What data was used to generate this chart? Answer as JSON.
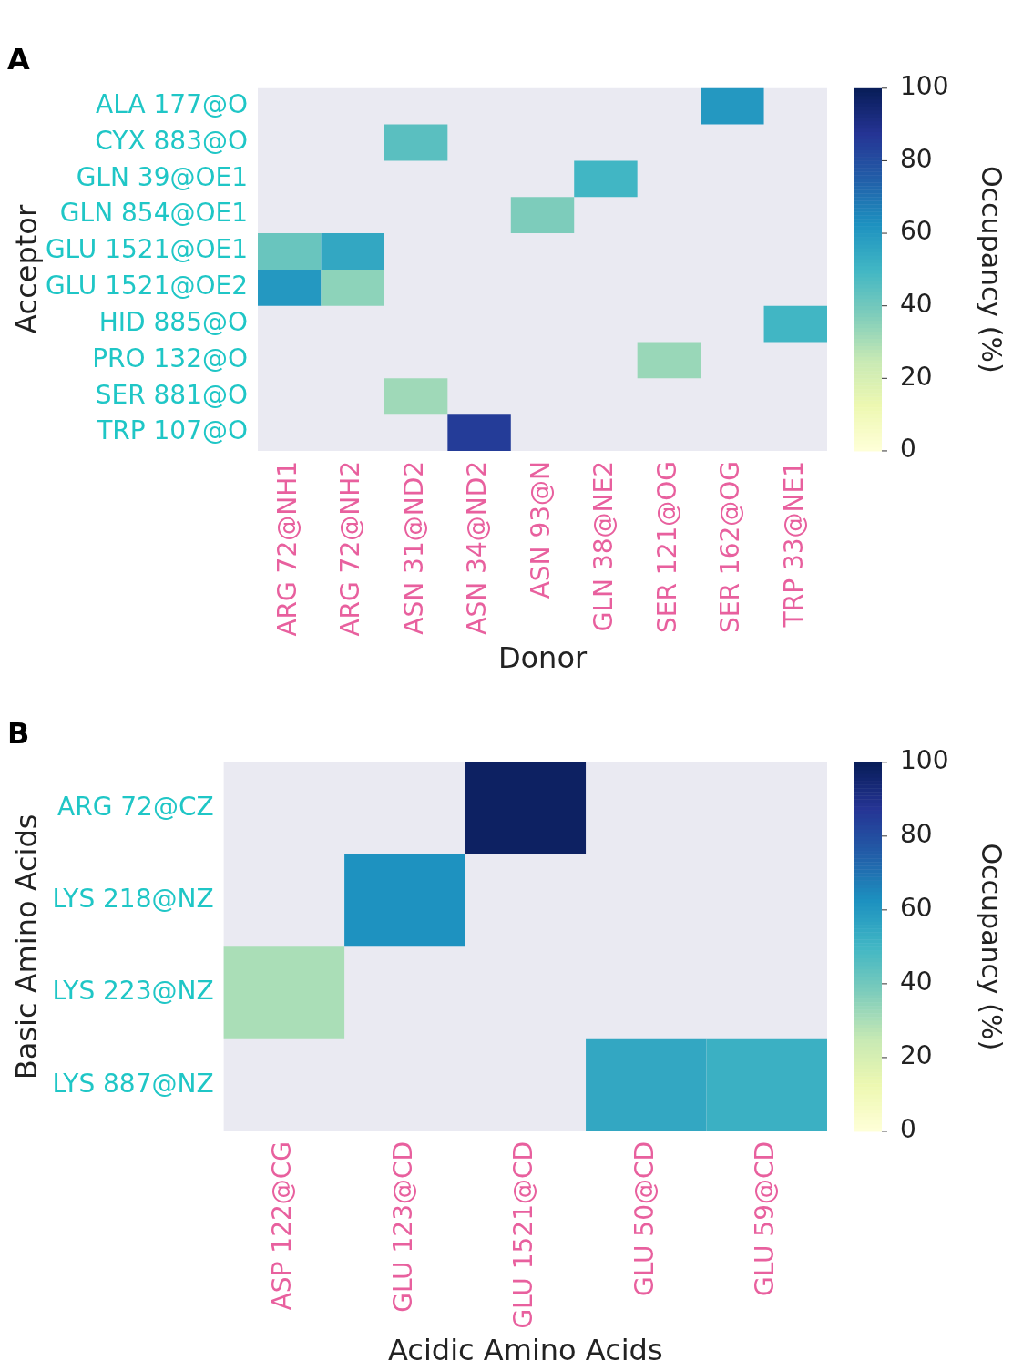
{
  "chart_data": [
    {
      "type": "heatmap",
      "title": "A",
      "xlabel": "Donor",
      "ylabel": "Acceptor",
      "clabel": "Occupancy (%)",
      "categories": [
        "ARG 72@NH1",
        "ARG 72@NH2",
        "ASN 31@ND2",
        "ASN 34@ND2",
        "ASN 93@N",
        "GLN 38@NE2",
        "SER 121@OG",
        "SER 162@OG",
        "TRP 33@NE1"
      ],
      "y_categories": [
        "ALA 177@O",
        "CYX 883@O",
        "GLN 39@OE1",
        "GLN 854@OE1",
        "GLU 1521@OE1",
        "GLU 1521@OE2",
        "HID 885@O",
        "PRO 132@O",
        "SER 881@O",
        "TRP 107@O"
      ],
      "cells": [
        [
          null,
          null,
          null,
          null,
          null,
          null,
          null,
          60,
          null
        ],
        [
          null,
          null,
          45,
          null,
          null,
          null,
          null,
          null,
          null
        ],
        [
          null,
          null,
          null,
          null,
          null,
          50,
          null,
          null,
          null
        ],
        [
          null,
          null,
          null,
          null,
          38,
          null,
          null,
          null,
          null
        ],
        [
          42,
          55,
          null,
          null,
          null,
          null,
          null,
          null,
          null
        ],
        [
          60,
          35,
          null,
          null,
          null,
          null,
          null,
          null,
          null
        ],
        [
          null,
          null,
          null,
          null,
          null,
          null,
          null,
          null,
          50
        ],
        [
          null,
          null,
          null,
          null,
          null,
          null,
          33,
          null,
          null
        ],
        [
          null,
          null,
          32,
          null,
          null,
          null,
          null,
          null,
          null
        ],
        [
          null,
          null,
          null,
          85,
          null,
          null,
          null,
          null,
          null
        ]
      ],
      "clim": [
        0,
        100
      ],
      "cticks": [
        0,
        20,
        40,
        60,
        80,
        100
      ]
    },
    {
      "type": "heatmap",
      "title": "B",
      "xlabel": "Acidic Amino Acids",
      "ylabel": "Basic Amino Acids",
      "clabel": "Occupancy (%)",
      "categories": [
        "ASP 122@CG",
        "GLU 123@CD",
        "GLU 1521@CD",
        "GLU 50@CD",
        "GLU 59@CD"
      ],
      "y_categories": [
        "ARG 72@CZ",
        "LYS 218@NZ",
        "LYS 223@NZ",
        "LYS 887@NZ"
      ],
      "cells": [
        [
          null,
          null,
          98,
          null,
          null
        ],
        [
          null,
          62,
          null,
          null,
          null
        ],
        [
          30,
          null,
          null,
          null,
          null
        ],
        [
          null,
          null,
          null,
          55,
          52
        ]
      ],
      "clim": [
        0,
        100
      ],
      "cticks": [
        0,
        20,
        40,
        60,
        80,
        100
      ]
    }
  ]
}
